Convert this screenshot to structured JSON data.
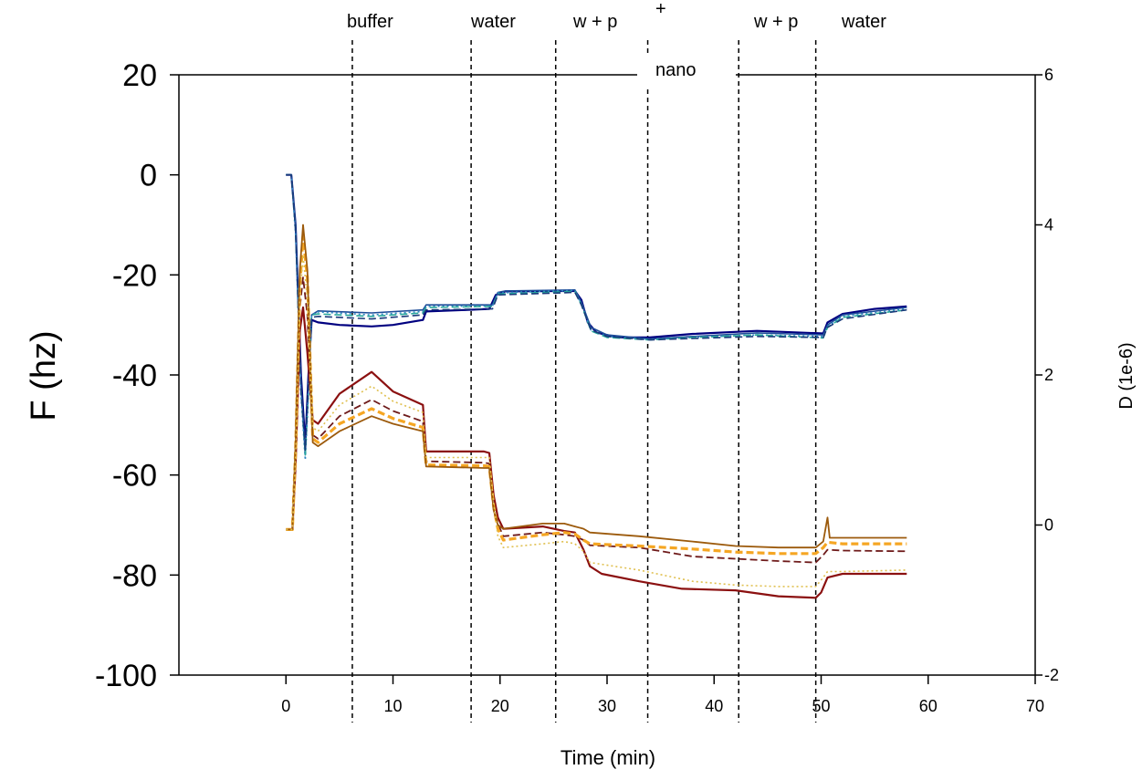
{
  "chart_data": {
    "type": "line",
    "title": "",
    "xlabel": "Time (min)",
    "ylabel": "F (hz)",
    "y2label": "D (1e-6)",
    "xlim": [
      -10,
      70
    ],
    "ylim": [
      -100,
      20
    ],
    "y2lim": [
      -2,
      6
    ],
    "xticks": [
      0,
      10,
      20,
      30,
      40,
      50,
      60,
      70
    ],
    "yticks": [
      -100,
      -80,
      -60,
      -40,
      -20,
      0,
      20
    ],
    "y2ticks": [
      -2,
      0,
      2,
      4,
      6
    ],
    "grid": false,
    "legend": "none",
    "phase_labels": [
      "buffer",
      "water",
      "w + p",
      "+",
      "nano",
      "w + p",
      "water"
    ],
    "phase_boundaries": [
      6.2,
      17.3,
      25.2,
      33.8,
      42.3,
      49.5
    ],
    "frequency_series": [
      {
        "color": "#000080",
        "style": "solid",
        "width": 2.2,
        "points": [
          [
            0,
            0
          ],
          [
            0.5,
            0
          ],
          [
            0.9,
            -10
          ],
          [
            1.4,
            -40
          ],
          [
            1.8,
            -54
          ],
          [
            2.1,
            -40
          ],
          [
            2.4,
            -29
          ],
          [
            3,
            -29.5
          ],
          [
            5,
            -30
          ],
          [
            8,
            -30.3
          ],
          [
            10,
            -30
          ],
          [
            12.8,
            -29
          ],
          [
            13.1,
            -27.3
          ],
          [
            17,
            -27
          ],
          [
            19,
            -26.8
          ],
          [
            19.6,
            -24
          ],
          [
            20.5,
            -23.3
          ],
          [
            27,
            -23.2
          ],
          [
            27.6,
            -25
          ],
          [
            28.2,
            -29.5
          ],
          [
            29,
            -31.5
          ],
          [
            31,
            -32.5
          ],
          [
            34,
            -32.5
          ],
          [
            38,
            -31.8
          ],
          [
            44,
            -31.2
          ],
          [
            50.2,
            -31.7
          ],
          [
            50.6,
            -29.5
          ],
          [
            52,
            -27.8
          ],
          [
            55,
            -26.8
          ],
          [
            58,
            -26.3
          ]
        ]
      },
      {
        "color": "#1f4e99",
        "style": "solid",
        "width": 1.6,
        "points": [
          [
            0,
            0
          ],
          [
            0.5,
            0
          ],
          [
            0.9,
            -10
          ],
          [
            1.4,
            -42
          ],
          [
            1.8,
            -56
          ],
          [
            2.1,
            -42
          ],
          [
            2.4,
            -28
          ],
          [
            3,
            -27.2
          ],
          [
            8,
            -27.6
          ],
          [
            12.8,
            -27
          ],
          [
            13.1,
            -26
          ],
          [
            19.3,
            -26
          ],
          [
            19.8,
            -23.5
          ],
          [
            20.5,
            -23.2
          ],
          [
            27,
            -23
          ],
          [
            27.6,
            -25.5
          ],
          [
            28.5,
            -30.5
          ],
          [
            30,
            -32
          ],
          [
            34,
            -32.8
          ],
          [
            38,
            -32.3
          ],
          [
            44,
            -31.6
          ],
          [
            50.2,
            -32
          ],
          [
            50.6,
            -30
          ],
          [
            52,
            -28
          ],
          [
            58,
            -26.5
          ]
        ]
      },
      {
        "color": "#2e86c1",
        "style": "dotted",
        "width": 1.6,
        "points": [
          [
            0,
            0
          ],
          [
            0.5,
            0
          ],
          [
            0.9,
            -12
          ],
          [
            1.4,
            -44
          ],
          [
            1.8,
            -57
          ],
          [
            2.1,
            -44
          ],
          [
            2.4,
            -28
          ],
          [
            3,
            -27.4
          ],
          [
            8,
            -28
          ],
          [
            12.8,
            -27.3
          ],
          [
            13.1,
            -26.3
          ],
          [
            19.3,
            -26.2
          ],
          [
            19.8,
            -23.6
          ],
          [
            27,
            -23.1
          ],
          [
            27.6,
            -26
          ],
          [
            28.5,
            -31
          ],
          [
            30,
            -32.3
          ],
          [
            34,
            -32.9
          ],
          [
            38,
            -32.5
          ],
          [
            44,
            -32
          ],
          [
            50.2,
            -32.3
          ],
          [
            50.6,
            -30.3
          ],
          [
            52,
            -28.3
          ],
          [
            58,
            -26.8
          ]
        ]
      },
      {
        "color": "#26a69a",
        "style": "dashed",
        "width": 1.6,
        "points": [
          [
            0,
            0
          ],
          [
            0.5,
            0
          ],
          [
            0.9,
            -11
          ],
          [
            1.4,
            -43
          ],
          [
            1.8,
            -56
          ],
          [
            2.1,
            -43
          ],
          [
            2.4,
            -28
          ],
          [
            3,
            -27.8
          ],
          [
            8,
            -28.3
          ],
          [
            12.8,
            -27.6
          ],
          [
            13.1,
            -26.5
          ],
          [
            19.3,
            -26.3
          ],
          [
            19.8,
            -23.8
          ],
          [
            27,
            -23.3
          ],
          [
            27.6,
            -26
          ],
          [
            28.5,
            -31.2
          ],
          [
            30,
            -32.5
          ],
          [
            34,
            -33
          ],
          [
            38,
            -32.5
          ],
          [
            44,
            -32
          ],
          [
            50.2,
            -32.6
          ],
          [
            50.6,
            -30.5
          ],
          [
            52,
            -28.5
          ],
          [
            58,
            -27
          ]
        ]
      },
      {
        "color": "#1a3a7a",
        "style": "dashed",
        "width": 1.6,
        "points": [
          [
            0,
            0
          ],
          [
            0.5,
            0
          ],
          [
            0.9,
            -11
          ],
          [
            1.4,
            -43
          ],
          [
            1.8,
            -55
          ],
          [
            2.1,
            -42
          ],
          [
            2.4,
            -28.5
          ],
          [
            3,
            -28.3
          ],
          [
            8,
            -28.8
          ],
          [
            12.8,
            -28
          ],
          [
            13.1,
            -27
          ],
          [
            19.3,
            -26.8
          ],
          [
            19.8,
            -24
          ],
          [
            27,
            -23.5
          ],
          [
            27.6,
            -26
          ],
          [
            28.5,
            -31
          ],
          [
            30,
            -32.3
          ],
          [
            34,
            -33
          ],
          [
            38,
            -32.7
          ],
          [
            44,
            -32.3
          ],
          [
            50.2,
            -32.5
          ],
          [
            50.6,
            -30.5
          ],
          [
            52,
            -28.8
          ],
          [
            58,
            -27
          ]
        ]
      }
    ],
    "dissipation_series": [
      {
        "color": "#8b1010",
        "style": "solid",
        "width": 2.2,
        "points": [
          [
            0,
            -0.06
          ],
          [
            0.6,
            -0.06
          ],
          [
            0.9,
            0.8
          ],
          [
            1.3,
            2.6
          ],
          [
            1.6,
            2.9
          ],
          [
            2,
            2.3
          ],
          [
            2.5,
            1.4
          ],
          [
            3,
            1.35
          ],
          [
            5,
            1.75
          ],
          [
            8,
            2.04
          ],
          [
            10,
            1.78
          ],
          [
            12.8,
            1.6
          ],
          [
            13.1,
            0.98
          ],
          [
            17,
            0.98
          ],
          [
            18.5,
            0.98
          ],
          [
            19,
            0.96
          ],
          [
            19.4,
            0.4
          ],
          [
            19.8,
            0.1
          ],
          [
            20.3,
            -0.05
          ],
          [
            24,
            -0.02
          ],
          [
            26,
            -0.08
          ],
          [
            27,
            -0.1
          ],
          [
            27.8,
            -0.33
          ],
          [
            28.4,
            -0.55
          ],
          [
            29.5,
            -0.65
          ],
          [
            33,
            -0.75
          ],
          [
            37,
            -0.85
          ],
          [
            42,
            -0.87
          ],
          [
            46,
            -0.95
          ],
          [
            49.5,
            -0.97
          ],
          [
            50,
            -0.9
          ],
          [
            50.6,
            -0.7
          ],
          [
            52,
            -0.65
          ],
          [
            58,
            -0.65
          ]
        ]
      },
      {
        "color": "#6e1a1a",
        "style": "dashed",
        "width": 1.8,
        "points": [
          [
            0,
            -0.06
          ],
          [
            0.6,
            -0.06
          ],
          [
            0.9,
            0.9
          ],
          [
            1.3,
            2.9
          ],
          [
            1.6,
            3.3
          ],
          [
            2,
            2.8
          ],
          [
            2.5,
            1.2
          ],
          [
            3,
            1.15
          ],
          [
            5,
            1.45
          ],
          [
            8,
            1.67
          ],
          [
            10,
            1.52
          ],
          [
            12.8,
            1.38
          ],
          [
            13.1,
            0.85
          ],
          [
            18.5,
            0.83
          ],
          [
            19,
            0.82
          ],
          [
            19.4,
            0.3
          ],
          [
            19.8,
            0.02
          ],
          [
            20.3,
            -0.15
          ],
          [
            24,
            -0.1
          ],
          [
            26,
            -0.13
          ],
          [
            27,
            -0.15
          ],
          [
            27.8,
            -0.2
          ],
          [
            28.4,
            -0.27
          ],
          [
            33,
            -0.3
          ],
          [
            38,
            -0.42
          ],
          [
            42,
            -0.45
          ],
          [
            46,
            -0.48
          ],
          [
            49.5,
            -0.5
          ],
          [
            50.2,
            -0.4
          ],
          [
            50.6,
            -0.33
          ],
          [
            52,
            -0.34
          ],
          [
            58,
            -0.35
          ]
        ]
      },
      {
        "color": "#f5a623",
        "style": "dashed",
        "width": 3.2,
        "points": [
          [
            0,
            -0.06
          ],
          [
            0.6,
            -0.06
          ],
          [
            0.9,
            1
          ],
          [
            1.3,
            3.2
          ],
          [
            1.6,
            3.85
          ],
          [
            2,
            3.3
          ],
          [
            2.5,
            1.15
          ],
          [
            3,
            1.1
          ],
          [
            5,
            1.35
          ],
          [
            8,
            1.55
          ],
          [
            10,
            1.42
          ],
          [
            12.8,
            1.3
          ],
          [
            13.1,
            0.8
          ],
          [
            18.5,
            0.79
          ],
          [
            19,
            0.78
          ],
          [
            19.4,
            0.25
          ],
          [
            19.8,
            -0.05
          ],
          [
            20.3,
            -0.2
          ],
          [
            24,
            -0.13
          ],
          [
            26,
            -0.1
          ],
          [
            27,
            -0.12
          ],
          [
            27.8,
            -0.2
          ],
          [
            28.4,
            -0.25
          ],
          [
            33,
            -0.28
          ],
          [
            38,
            -0.32
          ],
          [
            42,
            -0.36
          ],
          [
            46,
            -0.38
          ],
          [
            49.5,
            -0.38
          ],
          [
            50.2,
            -0.3
          ],
          [
            50.6,
            -0.23
          ],
          [
            52,
            -0.25
          ],
          [
            58,
            -0.25
          ]
        ]
      },
      {
        "color": "#9c5a0c",
        "style": "solid",
        "width": 1.8,
        "points": [
          [
            0,
            -0.06
          ],
          [
            0.6,
            -0.06
          ],
          [
            0.9,
            1.1
          ],
          [
            1.3,
            3.4
          ],
          [
            1.6,
            4.0
          ],
          [
            2,
            3.4
          ],
          [
            2.5,
            1.1
          ],
          [
            3,
            1.05
          ],
          [
            5,
            1.25
          ],
          [
            8,
            1.45
          ],
          [
            10,
            1.35
          ],
          [
            12.8,
            1.25
          ],
          [
            13.1,
            0.78
          ],
          [
            18.5,
            0.76
          ],
          [
            19,
            0.76
          ],
          [
            19.4,
            0.2
          ],
          [
            19.8,
            0.0
          ],
          [
            20.3,
            -0.05
          ],
          [
            24,
            0.02
          ],
          [
            26,
            0.02
          ],
          [
            27,
            -0.02
          ],
          [
            27.8,
            -0.05
          ],
          [
            28.4,
            -0.1
          ],
          [
            33,
            -0.15
          ],
          [
            38,
            -0.22
          ],
          [
            42,
            -0.28
          ],
          [
            46,
            -0.3
          ],
          [
            49.5,
            -0.3
          ],
          [
            50.2,
            -0.22
          ],
          [
            50.6,
            0.1
          ],
          [
            50.8,
            -0.17
          ],
          [
            52,
            -0.17
          ],
          [
            58,
            -0.17
          ]
        ]
      },
      {
        "color": "#e0c050",
        "style": "dotted",
        "width": 1.6,
        "points": [
          [
            0,
            -0.06
          ],
          [
            0.6,
            -0.06
          ],
          [
            0.9,
            0.9
          ],
          [
            1.3,
            3.0
          ],
          [
            1.6,
            3.6
          ],
          [
            2,
            3.0
          ],
          [
            2.5,
            1.3
          ],
          [
            3,
            1.25
          ],
          [
            5,
            1.6
          ],
          [
            8,
            1.85
          ],
          [
            10,
            1.65
          ],
          [
            12.8,
            1.5
          ],
          [
            13.1,
            0.9
          ],
          [
            18.5,
            0.9
          ],
          [
            19,
            0.9
          ],
          [
            19.4,
            0.3
          ],
          [
            19.8,
            -0.15
          ],
          [
            20.3,
            -0.3
          ],
          [
            24,
            -0.25
          ],
          [
            26,
            -0.22
          ],
          [
            27,
            -0.25
          ],
          [
            27.8,
            -0.35
          ],
          [
            28.4,
            -0.5
          ],
          [
            33,
            -0.6
          ],
          [
            38,
            -0.75
          ],
          [
            42,
            -0.8
          ],
          [
            46,
            -0.82
          ],
          [
            49.5,
            -0.82
          ],
          [
            50.2,
            -0.7
          ],
          [
            50.6,
            -0.62
          ],
          [
            52,
            -0.62
          ],
          [
            58,
            -0.6
          ]
        ]
      }
    ]
  }
}
